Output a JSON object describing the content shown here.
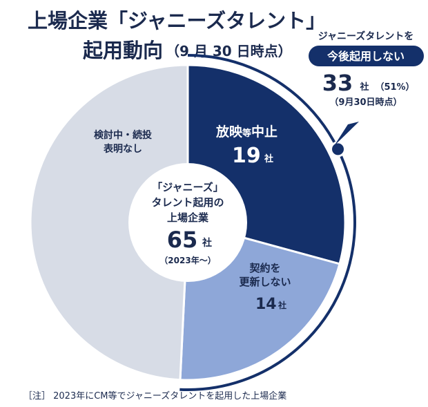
{
  "title": {
    "line1": "上場企業「ジャニーズタレント」",
    "line2": "起用動向",
    "line2_paren": "（9 月 30 日時点）"
  },
  "callout": {
    "top": "ジャニーズタレントを",
    "pill": "今後起用しない",
    "count": "33",
    "unit": "社",
    "pct": "（51%）",
    "date": "（9月30日時点）"
  },
  "center": {
    "line1": "「ジャニーズ」",
    "line2": "タレント起用の",
    "line3": "上場企業",
    "count": "65",
    "unit": "社",
    "since": "（2023年～）"
  },
  "note": "［注］ 2023年にCM等でジャニーズタレントを起用した上場企業",
  "chart_data": {
    "type": "pie",
    "title": "上場企業「ジャニーズタレント」起用動向（9 月 30 日時点）",
    "total": 65,
    "total_unit": "社",
    "slices": [
      {
        "key": "stop",
        "name": "放映等中止",
        "value": 19,
        "unit": "社",
        "color": "#14306a"
      },
      {
        "key": "noRenew",
        "name": "契約を更新しない",
        "value": 14,
        "unit": "社",
        "color": "#8ea7d8"
      },
      {
        "key": "review",
        "name": "検討中・続投表明なし",
        "value": 32,
        "unit": "社",
        "color": "#d7dce6"
      }
    ]
  },
  "slice_labels": {
    "stop_a": "放映",
    "stop_b": "等",
    "stop_c": "中止",
    "stop_val": "19",
    "stop_unit": "社",
    "renew_l1": "契約を",
    "renew_l2": "更新しない",
    "renew_val": "14",
    "renew_unit": "社",
    "review_l1": "検討中・続投",
    "review_l2": "表明なし"
  },
  "colors": {
    "navy": "#14306a",
    "light": "#8ea7d8",
    "gray": "#d7dce6",
    "text": "#1b2a4e"
  }
}
